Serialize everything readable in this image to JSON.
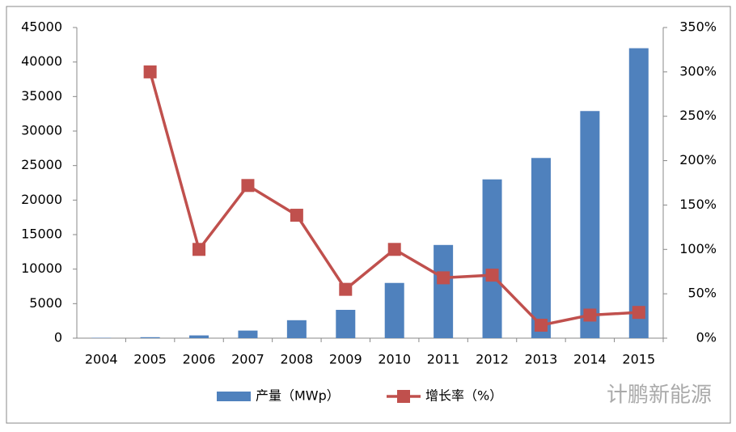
{
  "chart_data": {
    "type": "bar-line",
    "categories": [
      "2004",
      "2005",
      "2006",
      "2007",
      "2008",
      "2009",
      "2010",
      "2011",
      "2012",
      "2013",
      "2014",
      "2015"
    ],
    "series": [
      {
        "name": "产量（MWp）",
        "type": "bar",
        "color": "#4f81bd",
        "values": [
          50,
          140,
          400,
          1100,
          2600,
          4100,
          8000,
          13500,
          23000,
          26100,
          32900,
          42000
        ]
      },
      {
        "name": "增长率（%）",
        "type": "line",
        "axis": "y2",
        "color": "#c0504d",
        "values": [
          null,
          300,
          100,
          172,
          138.5,
          55,
          100,
          68,
          71,
          14.6,
          26,
          29
        ]
      }
    ],
    "ylim": [
      0,
      45000
    ],
    "yticks": [
      0,
      5000,
      10000,
      15000,
      20000,
      25000,
      30000,
      35000,
      40000,
      45000
    ],
    "y2lim": [
      0,
      350
    ],
    "y2ticks": [
      {
        "value": 0,
        "label": "0%"
      },
      {
        "value": 50,
        "label": "50%"
      },
      {
        "value": 100,
        "label": "100%"
      },
      {
        "value": 150,
        "label": "150%"
      },
      {
        "value": 200,
        "label": "200%"
      },
      {
        "value": 250,
        "label": "250%"
      },
      {
        "value": 300,
        "label": "300%"
      },
      {
        "value": 350,
        "label": "350%"
      }
    ],
    "legend": "bottom",
    "watermark": "计鹏新能源"
  }
}
